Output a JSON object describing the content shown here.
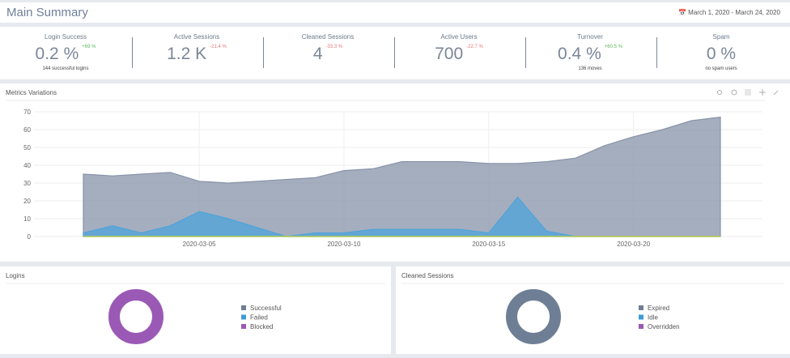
{
  "header": {
    "title": "Main Summary",
    "date_range": "March 1, 2020 - March 24, 2020"
  },
  "kpis": [
    {
      "label": "Login Success",
      "value": "0.2 %",
      "change": "+69 %",
      "note": "144  successful logins"
    },
    {
      "label": "Active Sessions",
      "value": "1.2 K",
      "change": "-21.4 %"
    },
    {
      "label": "Cleaned Sessions",
      "value": "4",
      "change": "-33.3 %"
    },
    {
      "label": "Active Users",
      "value": "700",
      "change": "-22.7 %"
    },
    {
      "label": "Turnover",
      "value": "0.4 %",
      "change": "+60.5 %",
      "note": "136  moves"
    },
    {
      "label": "Spam",
      "value": "0 %",
      "note": "no spam users"
    }
  ],
  "chart_data": [
    {
      "type": "area",
      "title": "Metrics Variations",
      "x": [
        "2020-03-01",
        "2020-03-02",
        "2020-03-03",
        "2020-03-04",
        "2020-03-05",
        "2020-03-06",
        "2020-03-07",
        "2020-03-08",
        "2020-03-09",
        "2020-03-10",
        "2020-03-11",
        "2020-03-12",
        "2020-03-13",
        "2020-03-14",
        "2020-03-15",
        "2020-03-16",
        "2020-03-17",
        "2020-03-18",
        "2020-03-19",
        "2020-03-20",
        "2020-03-21",
        "2020-03-22",
        "2020-03-23"
      ],
      "xticks": [
        "2020-03-05",
        "2020-03-10",
        "2020-03-15",
        "2020-03-20"
      ],
      "ylim": [
        0,
        70
      ],
      "yticks": [
        0,
        10,
        20,
        30,
        40,
        50,
        60,
        70
      ],
      "grid": true,
      "series": [
        {
          "color": "#8793a8",
          "values": [
            35,
            34,
            35,
            36,
            31,
            30,
            31,
            32,
            33,
            37,
            38,
            42,
            42,
            42,
            41,
            41,
            42,
            44,
            51,
            56,
            60,
            65,
            67
          ]
        },
        {
          "color": "#4ea3db",
          "values": [
            2,
            6,
            2,
            6,
            14,
            10,
            5,
            0,
            2,
            2,
            4,
            4,
            4,
            4,
            2,
            22,
            3,
            0,
            0,
            0,
            0,
            0,
            0
          ]
        },
        {
          "color": "#c5d43a",
          "values": [
            0,
            0,
            0,
            0,
            0,
            0,
            0,
            0,
            0,
            0,
            0,
            0,
            0,
            0,
            0,
            0,
            0,
            0,
            0,
            0,
            0,
            0,
            0
          ]
        }
      ]
    },
    {
      "type": "donut",
      "title": "Logins",
      "categories": [
        "Successful",
        "Failed",
        "Blocked"
      ],
      "colors": [
        "#6e7f95",
        "#3f9bd5",
        "#9b59b6"
      ],
      "values": [
        0,
        0,
        100
      ]
    },
    {
      "type": "donut",
      "title": "Cleaned Sessions",
      "categories": [
        "Expired",
        "Idle",
        "Overridden"
      ],
      "colors": [
        "#6e7f95",
        "#3f9bd5",
        "#9b59b6"
      ],
      "values": [
        100,
        0,
        0
      ]
    }
  ]
}
